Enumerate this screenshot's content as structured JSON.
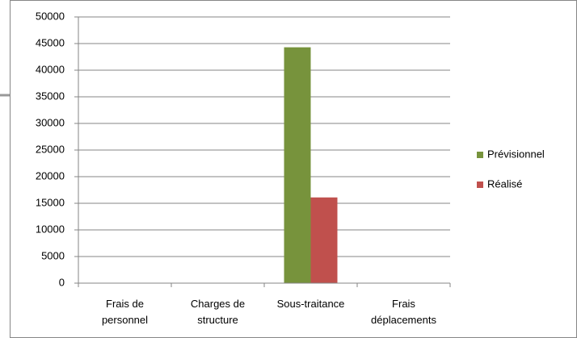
{
  "chart_data": {
    "type": "bar",
    "categories": [
      "Frais de\npersonnel",
      "Charges de\nstructure",
      "Sous-traitance",
      "Frais\ndéplacements"
    ],
    "series": [
      {
        "name": "Prévisionnel",
        "color": "#77933c",
        "values": [
          0,
          0,
          44300,
          0
        ]
      },
      {
        "name": "Réalisé",
        "color": "#c0504d",
        "values": [
          0,
          0,
          16100,
          0
        ]
      }
    ],
    "ylim": [
      0,
      50000
    ],
    "yticks": [
      0,
      5000,
      10000,
      15000,
      20000,
      25000,
      30000,
      35000,
      40000,
      45000,
      50000
    ],
    "grid": true,
    "legend": "right"
  }
}
